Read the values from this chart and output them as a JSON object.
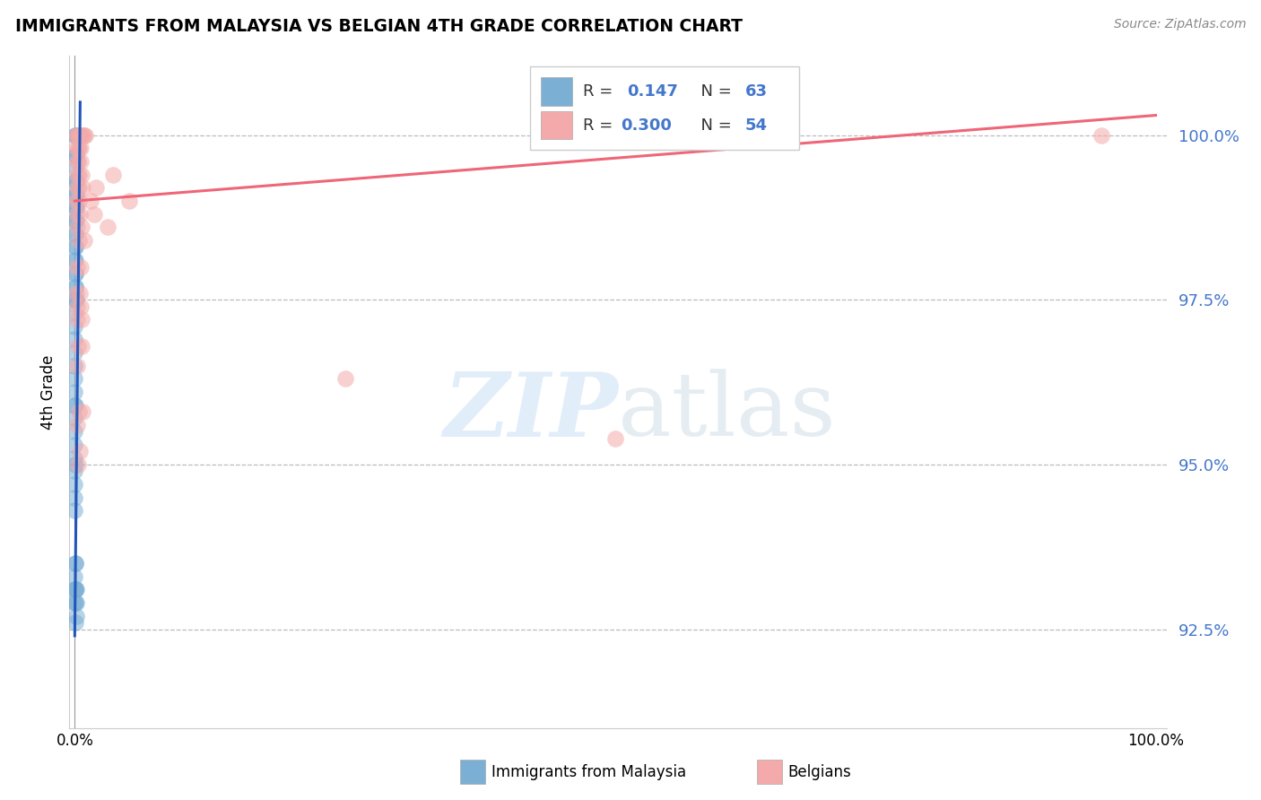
{
  "title": "IMMIGRANTS FROM MALAYSIA VS BELGIAN 4TH GRADE CORRELATION CHART",
  "source": "Source: ZipAtlas.com",
  "ylabel": "4th Grade",
  "ytick_values": [
    92.5,
    95.0,
    97.5,
    100.0
  ],
  "ymin": 91.0,
  "ymax": 101.2,
  "xmin": -0.5,
  "xmax": 101.0,
  "blue_color": "#7BAFD4",
  "pink_color": "#F4AAAA",
  "blue_line_color": "#2255BB",
  "pink_line_color": "#EE6677",
  "watermark_text": "ZIPatlas",
  "blue_dots_x": [
    0.05,
    0.12,
    0.18,
    0.07,
    0.2,
    0.04,
    0.08,
    0.14,
    0.06,
    0.03,
    0.09,
    0.15,
    0.02,
    0.06,
    0.12,
    0.02,
    0.05,
    0.1,
    0.02,
    0.05,
    0.09,
    0.02,
    0.07,
    0.02,
    0.05,
    0.01,
    0.04,
    0.02,
    0.05,
    0.02,
    0.08,
    0.01,
    0.06,
    0.12,
    0.01,
    0.01,
    0.01,
    0.01,
    0.01,
    0.01,
    0.01,
    0.01,
    0.05,
    0.01,
    0.01,
    0.01,
    0.01,
    0.05,
    0.01,
    0.01,
    0.01,
    0.01,
    0.04,
    0.09,
    0.01,
    0.01,
    0.06,
    0.1,
    0.05,
    0.01,
    0.06,
    0.11,
    0.13,
    0.09
  ],
  "blue_dots_y": [
    100.0,
    100.0,
    100.0,
    100.0,
    100.0,
    99.7,
    99.7,
    99.7,
    99.5,
    99.3,
    99.3,
    99.3,
    99.1,
    99.1,
    99.1,
    98.9,
    98.9,
    98.9,
    98.7,
    98.7,
    98.7,
    98.5,
    98.5,
    98.3,
    98.3,
    98.1,
    98.1,
    97.9,
    97.9,
    97.7,
    97.7,
    97.5,
    97.5,
    97.5,
    97.3,
    97.1,
    96.9,
    96.7,
    96.5,
    96.3,
    96.1,
    95.9,
    95.9,
    95.7,
    95.5,
    95.3,
    95.1,
    95.0,
    94.9,
    94.7,
    94.5,
    94.3,
    93.5,
    93.5,
    93.3,
    93.1,
    93.1,
    93.1,
    93.1,
    92.9,
    92.9,
    92.9,
    92.7,
    92.6
  ],
  "pink_dots_x": [
    0.12,
    0.25,
    0.38,
    0.5,
    0.62,
    0.75,
    0.85,
    0.95,
    95.0,
    0.12,
    0.3,
    0.42,
    0.55,
    0.18,
    0.32,
    0.58,
    0.2,
    0.35,
    0.65,
    3.5,
    0.18,
    0.4,
    0.75,
    2.0,
    0.12,
    0.35,
    1.5,
    5.0,
    0.22,
    0.45,
    1.8,
    0.18,
    0.65,
    3.0,
    0.35,
    0.85,
    0.25,
    0.55,
    0.14,
    0.45,
    0.18,
    0.55,
    0.22,
    0.62,
    0.32,
    0.65,
    0.22,
    25.0,
    0.42,
    0.72,
    0.22,
    50.0,
    0.5,
    0.3
  ],
  "pink_dots_y": [
    100.0,
    100.0,
    100.0,
    100.0,
    100.0,
    100.0,
    100.0,
    100.0,
    100.0,
    99.8,
    99.8,
    99.8,
    99.8,
    99.6,
    99.6,
    99.6,
    99.4,
    99.4,
    99.4,
    99.4,
    99.2,
    99.2,
    99.2,
    99.2,
    99.0,
    99.0,
    99.0,
    99.0,
    98.8,
    98.8,
    98.8,
    98.6,
    98.6,
    98.6,
    98.4,
    98.4,
    98.0,
    98.0,
    97.6,
    97.6,
    97.4,
    97.4,
    97.2,
    97.2,
    96.8,
    96.8,
    96.5,
    96.3,
    95.8,
    95.8,
    95.6,
    95.4,
    95.2,
    95.0
  ],
  "blue_trend_x": [
    0.0,
    0.5
  ],
  "blue_trend_y": [
    92.4,
    100.5
  ],
  "pink_trend_x": [
    0.0,
    100.0
  ],
  "pink_trend_y": [
    99.0,
    100.3
  ]
}
